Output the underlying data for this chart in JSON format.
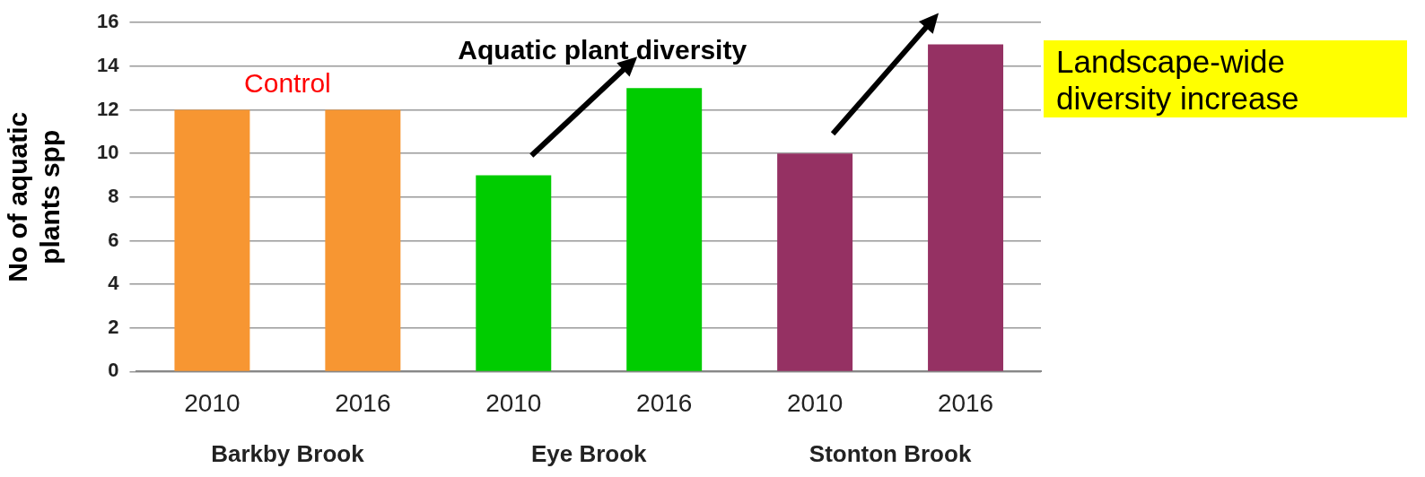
{
  "chart_data": {
    "type": "bar",
    "title": "Aquatic plant diversity",
    "ylabel": "No of aquatic plants spp",
    "categories": [
      "2010",
      "2016",
      "2010",
      "2016",
      "2010",
      "2016"
    ],
    "values": [
      12,
      12,
      9,
      13,
      10,
      15
    ],
    "colors": [
      "#f79632",
      "#f79632",
      "#00cc00",
      "#00cc00",
      "#953163",
      "#953163"
    ],
    "ylim": [
      0,
      16
    ],
    "yticks": [
      0,
      2,
      4,
      6,
      8,
      10,
      12,
      14,
      16
    ],
    "grid": "y",
    "legend": false,
    "annotations": [
      "Barkby Brook",
      "Eye Brook",
      "Stonton Brook",
      "Control",
      "Landscape-wide diversity increase"
    ]
  }
}
